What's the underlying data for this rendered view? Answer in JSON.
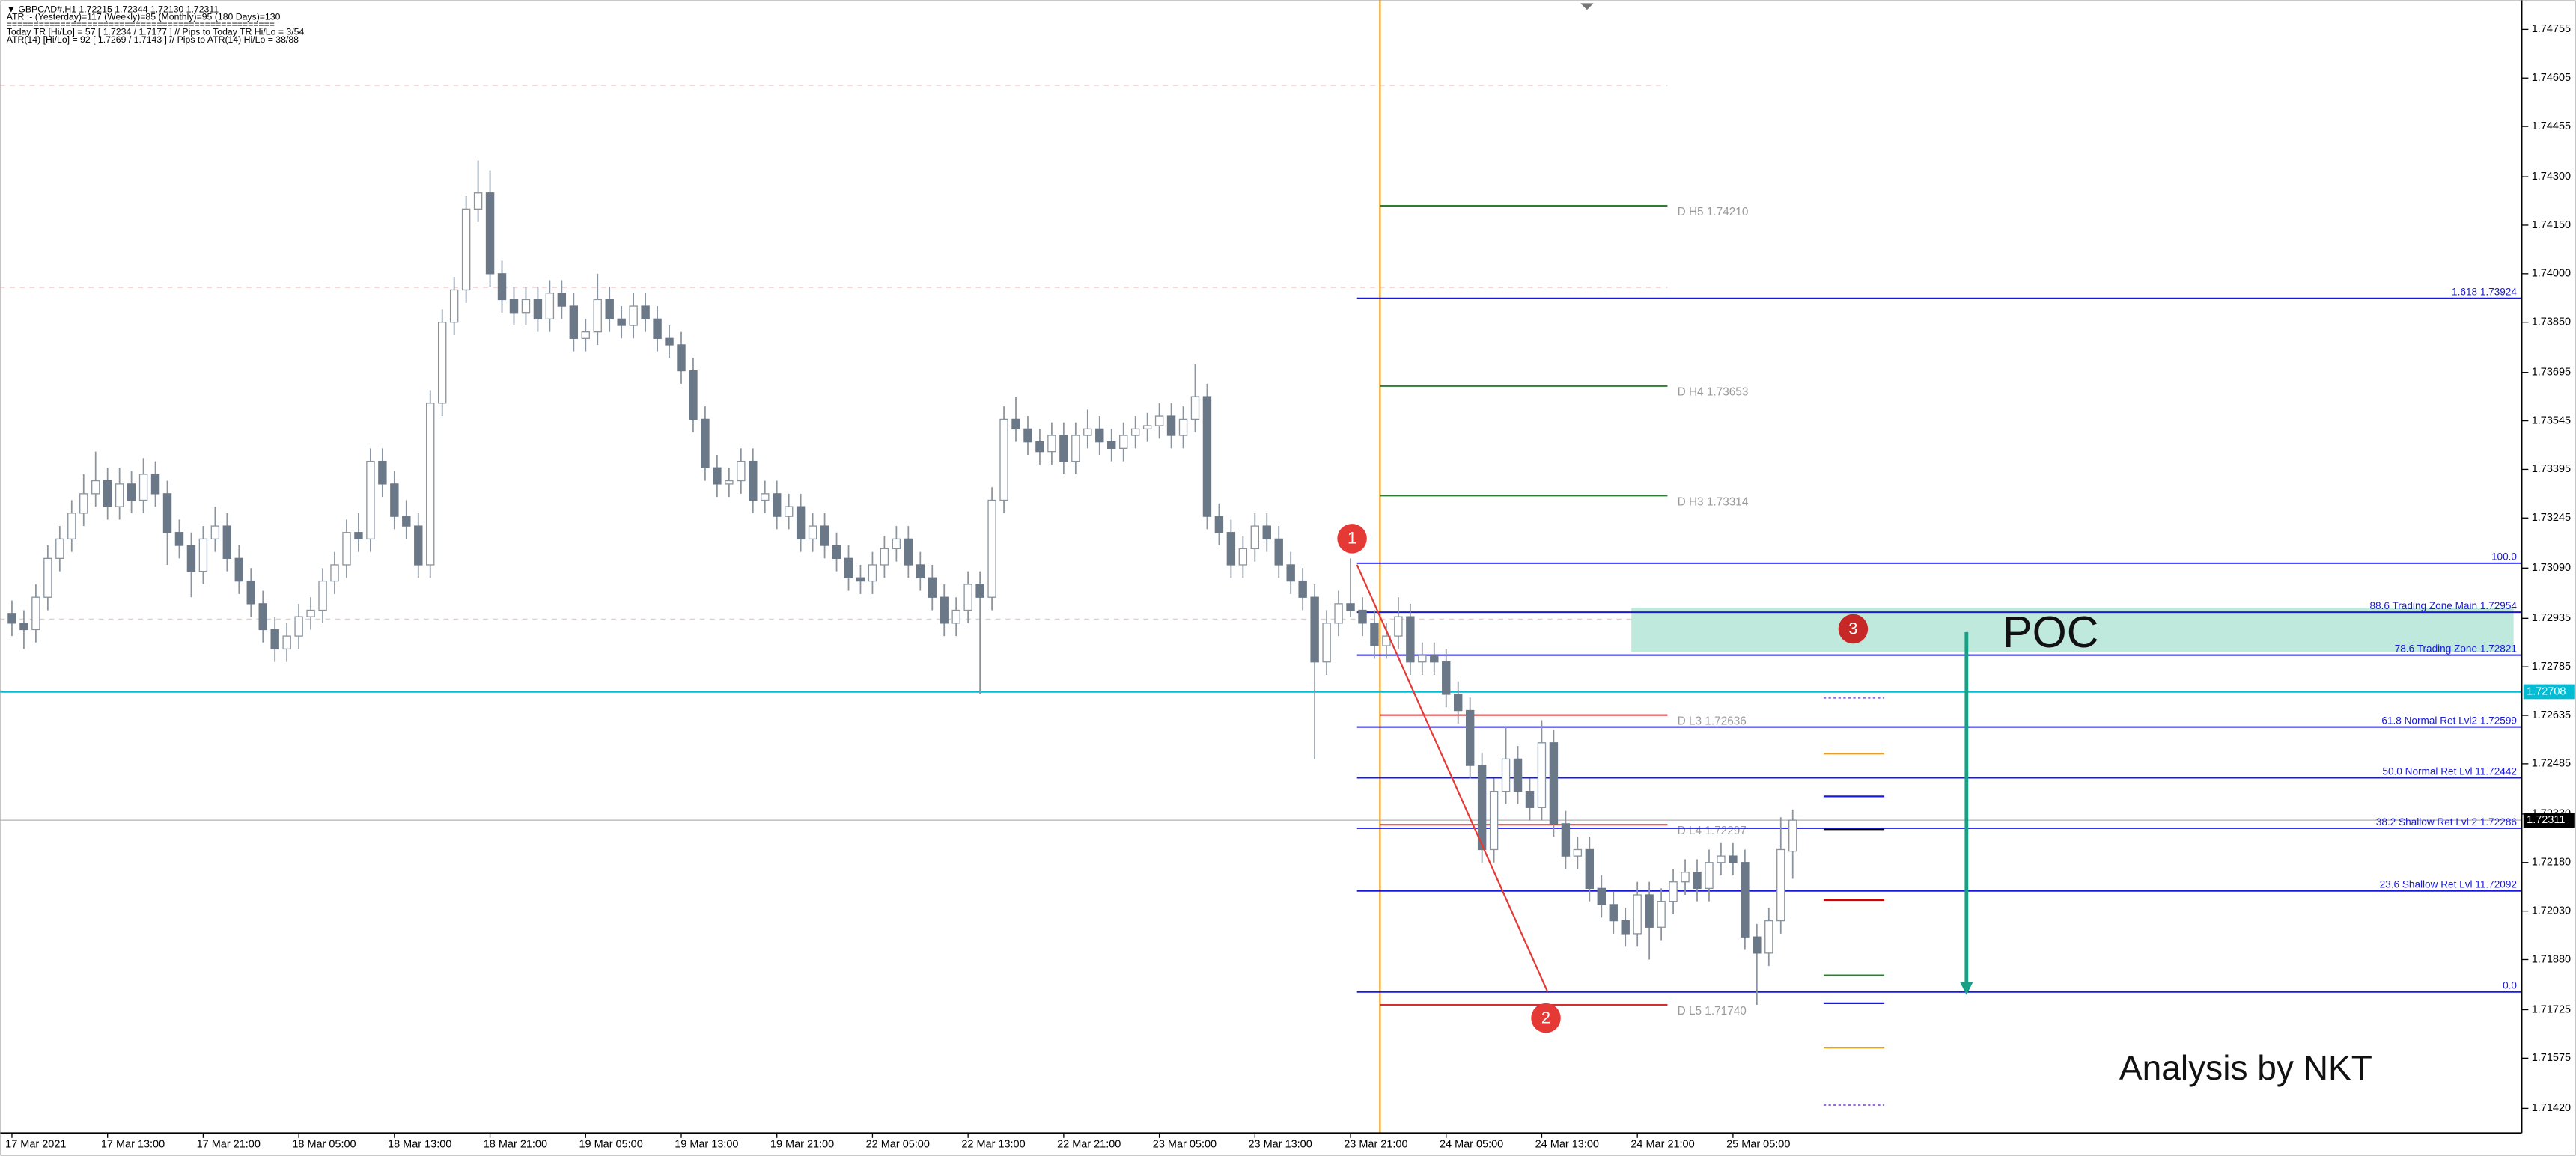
{
  "chart_data": {
    "type": "candlestick",
    "header": [
      "▼ GBPCAD#,H1  1.72215 1.72344 1.72130 1.72311",
      "ATR :- (Yesterday)=117      (Weekly)=85      (Monthly)=95      (180 Days)=130",
      "==================================================",
      "Today  TR [Hi/Lo] = 57 [ 1.7234 / 1.7177 ]  // Pips to Today  TR Hi/Lo  = 3/54",
      "ATR(14)       [Hi/Lo] = 92 [ 1.7269 / 1.7143 ]  // Pips to ATR(14) Hi/Lo      = 38/88"
    ],
    "up_color": "#ffffff",
    "down_color": "#6b7888",
    "wick_color": "#8a949e",
    "xlim": [
      -1,
      210
    ],
    "ylim": [
      1.71344,
      1.74846
    ],
    "xticks": [
      {
        "value": 0,
        "label": "17 Mar 2021"
      },
      {
        "value": 8,
        "label": "17 Mar 13:00"
      },
      {
        "value": 16,
        "label": "17 Mar 21:00"
      },
      {
        "value": 24,
        "label": "18 Mar 05:00"
      },
      {
        "value": 32,
        "label": "18 Mar 13:00"
      },
      {
        "value": 40,
        "label": "18 Mar 21:00"
      },
      {
        "value": 48,
        "label": "19 Mar 05:00"
      },
      {
        "value": 56,
        "label": "19 Mar 13:00"
      },
      {
        "value": 64,
        "label": "19 Mar 21:00"
      },
      {
        "value": 72,
        "label": "22 Mar 05:00"
      },
      {
        "value": 80,
        "label": "22 Mar 13:00"
      },
      {
        "value": 88,
        "label": "22 Mar 21:00"
      },
      {
        "value": 96,
        "label": "23 Mar 05:00"
      },
      {
        "value": 104,
        "label": "23 Mar 13:00"
      },
      {
        "value": 112,
        "label": "23 Mar 21:00"
      },
      {
        "value": 120,
        "label": "24 Mar 05:00"
      },
      {
        "value": 128,
        "label": "24 Mar 13:00"
      },
      {
        "value": 136,
        "label": "24 Mar 21:00"
      },
      {
        "value": 144,
        "label": "25 Mar 05:00"
      }
    ],
    "yticks": [
      {
        "value": 1.74755,
        "label": "1.74755"
      },
      {
        "value": 1.74605,
        "label": "1.74605"
      },
      {
        "value": 1.74455,
        "label": "1.74455"
      },
      {
        "value": 1.743,
        "label": "1.74300"
      },
      {
        "value": 1.7415,
        "label": "1.74150"
      },
      {
        "value": 1.74,
        "label": "1.74000"
      },
      {
        "value": 1.7385,
        "label": "1.73850"
      },
      {
        "value": 1.73695,
        "label": "1.73695"
      },
      {
        "value": 1.73545,
        "label": "1.73545"
      },
      {
        "value": 1.73395,
        "label": "1.73395"
      },
      {
        "value": 1.73245,
        "label": "1.73245"
      },
      {
        "value": 1.7309,
        "label": "1.73090"
      },
      {
        "value": 1.72935,
        "label": "1.72935"
      },
      {
        "value": 1.72785,
        "label": "1.72785"
      },
      {
        "value": 1.72635,
        "label": "1.72635"
      },
      {
        "value": 1.72485,
        "label": "1.72485"
      },
      {
        "value": 1.7233,
        "label": "1.72330"
      },
      {
        "value": 1.7218,
        "label": "1.72180"
      },
      {
        "value": 1.7203,
        "label": "1.72030"
      },
      {
        "value": 1.7188,
        "label": "1.71880"
      },
      {
        "value": 1.71725,
        "label": "1.71725"
      },
      {
        "value": 1.71575,
        "label": "1.71575"
      },
      {
        "value": 1.7142,
        "label": "1.71420"
      }
    ],
    "candles": [
      [
        1.7295,
        1.7299,
        1.7288,
        1.7292
      ],
      [
        1.7292,
        1.7296,
        1.7284,
        1.729
      ],
      [
        1.729,
        1.7304,
        1.7286,
        1.73
      ],
      [
        1.73,
        1.7316,
        1.7296,
        1.7312
      ],
      [
        1.7312,
        1.7322,
        1.7308,
        1.7318
      ],
      [
        1.7318,
        1.733,
        1.7314,
        1.7326
      ],
      [
        1.7326,
        1.7338,
        1.7322,
        1.7332
      ],
      [
        1.7332,
        1.7345,
        1.7328,
        1.7336
      ],
      [
        1.7336,
        1.734,
        1.7324,
        1.7328
      ],
      [
        1.7328,
        1.734,
        1.7324,
        1.7335
      ],
      [
        1.7335,
        1.7339,
        1.7326,
        1.733
      ],
      [
        1.733,
        1.7343,
        1.7326,
        1.7338
      ],
      [
        1.7338,
        1.7342,
        1.7328,
        1.7332
      ],
      [
        1.7332,
        1.7336,
        1.731,
        1.732
      ],
      [
        1.732,
        1.7324,
        1.7312,
        1.7316
      ],
      [
        1.7316,
        1.732,
        1.73,
        1.7308
      ],
      [
        1.7308,
        1.7322,
        1.7304,
        1.7318
      ],
      [
        1.7318,
        1.7328,
        1.7314,
        1.7322
      ],
      [
        1.7322,
        1.7326,
        1.7308,
        1.7312
      ],
      [
        1.7312,
        1.7316,
        1.7301,
        1.7305
      ],
      [
        1.7305,
        1.7309,
        1.7294,
        1.7298
      ],
      [
        1.7298,
        1.7302,
        1.7286,
        1.729
      ],
      [
        1.729,
        1.7294,
        1.728,
        1.7284
      ],
      [
        1.7284,
        1.7292,
        1.728,
        1.7288
      ],
      [
        1.7288,
        1.7298,
        1.7284,
        1.7294
      ],
      [
        1.7294,
        1.73,
        1.729,
        1.7296
      ],
      [
        1.7296,
        1.7309,
        1.7292,
        1.7305
      ],
      [
        1.7305,
        1.7314,
        1.7301,
        1.731
      ],
      [
        1.731,
        1.7324,
        1.7306,
        1.732
      ],
      [
        1.732,
        1.7326,
        1.7314,
        1.7318
      ],
      [
        1.7318,
        1.7346,
        1.7314,
        1.7342
      ],
      [
        1.7342,
        1.7346,
        1.7331,
        1.7335
      ],
      [
        1.7335,
        1.7339,
        1.7321,
        1.7325
      ],
      [
        1.7325,
        1.733,
        1.7318,
        1.7322
      ],
      [
        1.7322,
        1.7326,
        1.7306,
        1.731
      ],
      [
        1.731,
        1.7364,
        1.7306,
        1.736
      ],
      [
        1.736,
        1.7389,
        1.7356,
        1.7385
      ],
      [
        1.7385,
        1.7399,
        1.7381,
        1.7395
      ],
      [
        1.7395,
        1.7424,
        1.7391,
        1.742
      ],
      [
        1.742,
        1.7435,
        1.7416,
        1.7425
      ],
      [
        1.7425,
        1.7432,
        1.7396,
        1.74
      ],
      [
        1.74,
        1.7404,
        1.7388,
        1.7392
      ],
      [
        1.7392,
        1.7396,
        1.7384,
        1.7388
      ],
      [
        1.7388,
        1.7396,
        1.7384,
        1.7392
      ],
      [
        1.7392,
        1.7396,
        1.7382,
        1.7386
      ],
      [
        1.7386,
        1.7398,
        1.7382,
        1.7394
      ],
      [
        1.7394,
        1.7398,
        1.7386,
        1.739
      ],
      [
        1.739,
        1.7394,
        1.7376,
        1.738
      ],
      [
        1.738,
        1.7386,
        1.7376,
        1.7382
      ],
      [
        1.7382,
        1.74,
        1.7378,
        1.7392
      ],
      [
        1.7392,
        1.7396,
        1.7382,
        1.7386
      ],
      [
        1.7386,
        1.739,
        1.738,
        1.7384
      ],
      [
        1.7384,
        1.7394,
        1.738,
        1.739
      ],
      [
        1.739,
        1.7394,
        1.7382,
        1.7386
      ],
      [
        1.7386,
        1.739,
        1.7376,
        1.738
      ],
      [
        1.738,
        1.7384,
        1.7374,
        1.7378
      ],
      [
        1.7378,
        1.7382,
        1.7366,
        1.737
      ],
      [
        1.737,
        1.7374,
        1.7351,
        1.7355
      ],
      [
        1.7355,
        1.7359,
        1.7336,
        1.734
      ],
      [
        1.734,
        1.7344,
        1.7331,
        1.7335
      ],
      [
        1.7335,
        1.734,
        1.7331,
        1.7336
      ],
      [
        1.7336,
        1.7346,
        1.7332,
        1.7342
      ],
      [
        1.7342,
        1.7346,
        1.7326,
        1.733
      ],
      [
        1.733,
        1.7336,
        1.7326,
        1.7332
      ],
      [
        1.7332,
        1.7336,
        1.7321,
        1.7325
      ],
      [
        1.7325,
        1.7332,
        1.7321,
        1.7328
      ],
      [
        1.7328,
        1.7332,
        1.7314,
        1.7318
      ],
      [
        1.7318,
        1.7326,
        1.7314,
        1.7322
      ],
      [
        1.7322,
        1.7326,
        1.7312,
        1.7316
      ],
      [
        1.7316,
        1.732,
        1.7308,
        1.7312
      ],
      [
        1.7312,
        1.7316,
        1.7302,
        1.7306
      ],
      [
        1.7306,
        1.731,
        1.7301,
        1.7305
      ],
      [
        1.7305,
        1.7314,
        1.7301,
        1.731
      ],
      [
        1.731,
        1.7319,
        1.7306,
        1.7315
      ],
      [
        1.7315,
        1.7322,
        1.7311,
        1.7318
      ],
      [
        1.7318,
        1.7322,
        1.7306,
        1.731
      ],
      [
        1.731,
        1.7314,
        1.7302,
        1.7306
      ],
      [
        1.7306,
        1.731,
        1.7296,
        1.73
      ],
      [
        1.73,
        1.7304,
        1.7288,
        1.7292
      ],
      [
        1.7292,
        1.73,
        1.7288,
        1.7296
      ],
      [
        1.7296,
        1.7308,
        1.7292,
        1.7304
      ],
      [
        1.7304,
        1.7308,
        1.727,
        1.73
      ],
      [
        1.73,
        1.7334,
        1.7296,
        1.733
      ],
      [
        1.733,
        1.7359,
        1.7326,
        1.7355
      ],
      [
        1.7355,
        1.7362,
        1.7348,
        1.7352
      ],
      [
        1.7352,
        1.7356,
        1.7344,
        1.7348
      ],
      [
        1.7348,
        1.7352,
        1.7341,
        1.7345
      ],
      [
        1.7345,
        1.7354,
        1.7341,
        1.735
      ],
      [
        1.735,
        1.7354,
        1.7338,
        1.7342
      ],
      [
        1.7342,
        1.7354,
        1.7338,
        1.735
      ],
      [
        1.735,
        1.7358,
        1.7346,
        1.7352
      ],
      [
        1.7352,
        1.7356,
        1.7344,
        1.7348
      ],
      [
        1.7348,
        1.7352,
        1.7342,
        1.7346
      ],
      [
        1.7346,
        1.7354,
        1.7342,
        1.735
      ],
      [
        1.735,
        1.7356,
        1.7346,
        1.7352
      ],
      [
        1.7352,
        1.7357,
        1.7348,
        1.7353
      ],
      [
        1.7353,
        1.736,
        1.7349,
        1.7356
      ],
      [
        1.7356,
        1.736,
        1.7346,
        1.735
      ],
      [
        1.735,
        1.7359,
        1.7346,
        1.7355
      ],
      [
        1.7355,
        1.7372,
        1.7351,
        1.7362
      ],
      [
        1.7362,
        1.7366,
        1.7321,
        1.7325
      ],
      [
        1.7325,
        1.7329,
        1.7316,
        1.732
      ],
      [
        1.732,
        1.7324,
        1.7306,
        1.731
      ],
      [
        1.731,
        1.7319,
        1.7306,
        1.7315
      ],
      [
        1.7315,
        1.7326,
        1.7311,
        1.7322
      ],
      [
        1.7322,
        1.7326,
        1.7314,
        1.7318
      ],
      [
        1.7318,
        1.7322,
        1.7306,
        1.731
      ],
      [
        1.731,
        1.7314,
        1.7301,
        1.7305
      ],
      [
        1.7305,
        1.7309,
        1.7296,
        1.73
      ],
      [
        1.73,
        1.7304,
        1.725,
        1.728
      ],
      [
        1.728,
        1.7296,
        1.7276,
        1.7292
      ],
      [
        1.7292,
        1.7302,
        1.7288,
        1.7298
      ],
      [
        1.7298,
        1.7312,
        1.7294,
        1.7296
      ],
      [
        1.7296,
        1.73,
        1.7288,
        1.7292
      ],
      [
        1.7292,
        1.7296,
        1.7281,
        1.7285
      ],
      [
        1.7285,
        1.7292,
        1.7281,
        1.7288
      ],
      [
        1.7288,
        1.73,
        1.7284,
        1.7294
      ],
      [
        1.7294,
        1.7298,
        1.7276,
        1.728
      ],
      [
        1.728,
        1.7286,
        1.7276,
        1.7282
      ],
      [
        1.7282,
        1.7286,
        1.7276,
        1.728
      ],
      [
        1.728,
        1.7284,
        1.7266,
        1.727
      ],
      [
        1.727,
        1.7274,
        1.7261,
        1.7265
      ],
      [
        1.7265,
        1.7269,
        1.7244,
        1.7248
      ],
      [
        1.7248,
        1.7252,
        1.7218,
        1.7222
      ],
      [
        1.7222,
        1.7244,
        1.7218,
        1.724
      ],
      [
        1.724,
        1.726,
        1.7236,
        1.725
      ],
      [
        1.725,
        1.7254,
        1.7236,
        1.724
      ],
      [
        1.724,
        1.7244,
        1.7231,
        1.7235
      ],
      [
        1.7235,
        1.7262,
        1.7231,
        1.7255
      ],
      [
        1.7255,
        1.7259,
        1.7226,
        1.723
      ],
      [
        1.723,
        1.7234,
        1.7216,
        1.722
      ],
      [
        1.722,
        1.7226,
        1.7216,
        1.7222
      ],
      [
        1.7222,
        1.7226,
        1.7206,
        1.721
      ],
      [
        1.721,
        1.7214,
        1.7201,
        1.7205
      ],
      [
        1.7205,
        1.7209,
        1.7196,
        1.72
      ],
      [
        1.72,
        1.7204,
        1.7192,
        1.7196
      ],
      [
        1.7196,
        1.7212,
        1.7192,
        1.7208
      ],
      [
        1.7208,
        1.7212,
        1.7188,
        1.7198
      ],
      [
        1.7198,
        1.721,
        1.7194,
        1.7206
      ],
      [
        1.7206,
        1.7216,
        1.7202,
        1.7212
      ],
      [
        1.7212,
        1.7219,
        1.7208,
        1.7215
      ],
      [
        1.7215,
        1.7219,
        1.7206,
        1.721
      ],
      [
        1.721,
        1.7222,
        1.7206,
        1.7218
      ],
      [
        1.7218,
        1.7224,
        1.7214,
        1.722
      ],
      [
        1.722,
        1.7224,
        1.7214,
        1.7218
      ],
      [
        1.7218,
        1.7222,
        1.7191,
        1.7195
      ],
      [
        1.7195,
        1.7199,
        1.7174,
        1.719
      ],
      [
        1.719,
        1.7204,
        1.7186,
        1.72
      ],
      [
        1.72,
        1.7232,
        1.7196,
        1.7222
      ],
      [
        1.72215,
        1.72344,
        1.7213,
        1.72311
      ]
    ],
    "pivots": [
      {
        "label": "D  H5 1.74210",
        "value": 1.7421,
        "color": "#2e7d32"
      },
      {
        "label": "D  H4 1.73653",
        "value": 1.73653,
        "color": "#2e7d32"
      },
      {
        "label": "D  H3 1.73314",
        "value": 1.73314,
        "color": "#2e7d32"
      },
      {
        "label": "D  L3 1.72636",
        "value": 1.72636,
        "color": "#d32f2f"
      },
      {
        "label": "D  L4 1.72297",
        "value": 1.72297,
        "color": "#d32f2f"
      },
      {
        "label": "D  L5 1.71740",
        "value": 1.7174,
        "color": "#d32f2f"
      }
    ],
    "fibs": [
      {
        "label": "1.618 1.73924",
        "value": 1.73924
      },
      {
        "label": "100.0",
        "value": 1.73105
      },
      {
        "label": "88.6 Trading Zone Main 1.72954",
        "value": 1.72954
      },
      {
        "label": "78.6 Trading Zone 1.72821",
        "value": 1.72821
      },
      {
        "label": "61.8 Normal Ret Lvl2 1.72599",
        "value": 1.72599
      },
      {
        "label": "50.0 Normal Ret Lvl 11.72442",
        "value": 1.72442
      },
      {
        "label": "38.2 Shallow Ret Lvl 2 1.72286",
        "value": 1.72286
      },
      {
        "label": "23.6 Shallow Ret Lvl 11.72092",
        "value": 1.72092
      },
      {
        "label": "0.0",
        "value": 1.7178
      }
    ],
    "fib_color": "#1a1ad6",
    "hlines": [
      {
        "label": "1.72708",
        "value": 1.72708,
        "color": "#00bcd4",
        "text_color": "#ffffff"
      },
      {
        "label": "1.72311",
        "value": 1.72311,
        "color": "#000000",
        "text_color": "#ffffff"
      }
    ],
    "annotations": {
      "poc": "POC",
      "credit": "Analysis by NKT",
      "marker1": "1",
      "marker2": "2",
      "marker3": "3"
    }
  }
}
